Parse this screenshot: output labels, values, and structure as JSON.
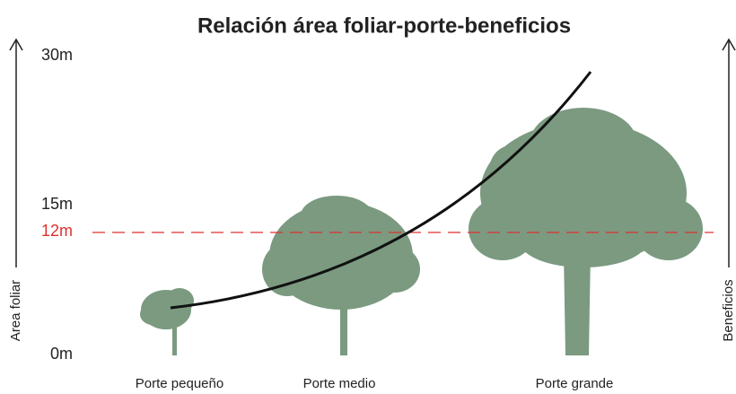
{
  "title": "Relación área foliar-porte-beneficios",
  "left_axis": {
    "label": "Area foliar",
    "ticks": [
      "30m",
      "15m",
      "12m",
      "0m"
    ]
  },
  "right_axis": {
    "label": "Beneficios"
  },
  "trees": [
    {
      "label": "Porte pequeño"
    },
    {
      "label": "Porte medio"
    },
    {
      "label": "Porte grande"
    }
  ]
}
